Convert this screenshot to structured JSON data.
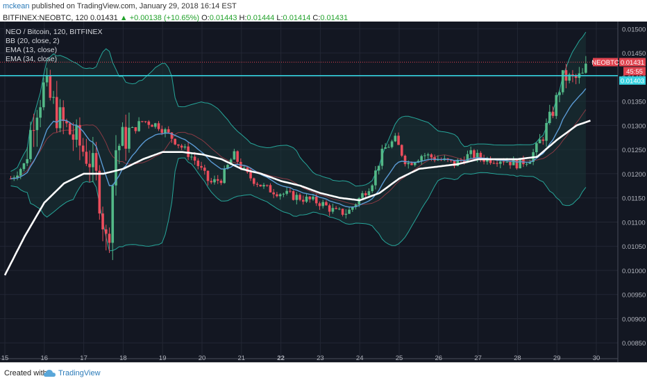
{
  "header": {
    "user": "mckean",
    "published": "published on TradingView.com, January 29, 2018 16:14 EST",
    "symbol_interval": "BITFINEX:NEOBTC, 120",
    "last": "0.01431",
    "change": "▲ +0.00138 (+10.65%)",
    "o_label": "O:",
    "o_val": "0.01443",
    "h_label": "H:",
    "h_val": "0.01444",
    "l_label": "L:",
    "l_val": "0.01414",
    "c_label": "C:",
    "c_val": "0.01431"
  },
  "legend": {
    "title": "NEO / Bitcoin, 120, BITFINEX",
    "bb": "BB (20, close, 2)",
    "ema13": "EMA (13, close)",
    "ema34": "EMA (34, close)"
  },
  "price_tags": {
    "symbol": "NEOBTC",
    "last": "0.01431",
    "countdown": "45:55",
    "hline": "0.01403"
  },
  "footer": {
    "created": "Created with",
    "brand": "TradingView"
  },
  "colors": {
    "background": "#131722",
    "grid": "#232734",
    "up": "#53b987",
    "down": "#eb4d5c",
    "bb_line": "#26a69a",
    "bb_fill": "#1a3537",
    "ema13": "#5b9bd5",
    "ema34": "#ffffff",
    "hline": "#36d2e0",
    "tag_red": "#e0434f"
  },
  "chart_data": {
    "type": "candlestick",
    "y_ticks": [
      "0.01500",
      "0.01450",
      "0.01400",
      "0.01350",
      "0.01300",
      "0.01250",
      "0.01200",
      "0.01150",
      "0.01100",
      "0.01050",
      "0.01000",
      "0.00950",
      "0.00900",
      "0.00850"
    ],
    "y_range": [
      0.0081,
      0.01515
    ],
    "x_ticks": [
      "15",
      "16",
      "17",
      "18",
      "19",
      "20",
      "21",
      "22",
      "23",
      "24",
      "25",
      "26",
      "27",
      "28",
      "29",
      "30"
    ],
    "x_day_range": [
      15.0,
      30.5
    ],
    "horizontal_line": 0.01403,
    "last_price": 0.01431,
    "candles_keypoints": [
      {
        "day": 15.15,
        "close": 0.0119
      },
      {
        "day": 15.5,
        "close": 0.0122
      },
      {
        "day": 15.75,
        "close": 0.0133
      },
      {
        "day": 16.0,
        "close": 0.0138
      },
      {
        "day": 16.4,
        "close": 0.0131
      },
      {
        "day": 16.8,
        "close": 0.0127
      },
      {
        "day": 17.15,
        "close": 0.0123
      },
      {
        "day": 17.35,
        "close": 0.0118
      },
      {
        "day": 17.6,
        "close": 0.0104
      },
      {
        "day": 17.8,
        "close": 0.0125
      },
      {
        "day": 18.1,
        "close": 0.0128
      },
      {
        "day": 18.5,
        "close": 0.0131
      },
      {
        "day": 18.9,
        "close": 0.013
      },
      {
        "day": 19.3,
        "close": 0.0127
      },
      {
        "day": 19.8,
        "close": 0.0123
      },
      {
        "day": 20.2,
        "close": 0.0118
      },
      {
        "day": 20.5,
        "close": 0.0119
      },
      {
        "day": 20.8,
        "close": 0.0124
      },
      {
        "day": 21.1,
        "close": 0.012
      },
      {
        "day": 21.6,
        "close": 0.0117
      },
      {
        "day": 22.0,
        "close": 0.0116
      },
      {
        "day": 22.5,
        "close": 0.0115
      },
      {
        "day": 23.0,
        "close": 0.0114
      },
      {
        "day": 23.4,
        "close": 0.0112
      },
      {
        "day": 23.7,
        "close": 0.0112
      },
      {
        "day": 24.0,
        "close": 0.0115
      },
      {
        "day": 24.3,
        "close": 0.0118
      },
      {
        "day": 24.6,
        "close": 0.0125
      },
      {
        "day": 24.9,
        "close": 0.0127
      },
      {
        "day": 25.2,
        "close": 0.0122
      },
      {
        "day": 25.6,
        "close": 0.0124
      },
      {
        "day": 26.0,
        "close": 0.0123
      },
      {
        "day": 26.4,
        "close": 0.0122
      },
      {
        "day": 26.8,
        "close": 0.0124
      },
      {
        "day": 27.2,
        "close": 0.0123
      },
      {
        "day": 27.6,
        "close": 0.0123
      },
      {
        "day": 28.0,
        "close": 0.0122
      },
      {
        "day": 28.3,
        "close": 0.0123
      },
      {
        "day": 28.6,
        "close": 0.0127
      },
      {
        "day": 28.9,
        "close": 0.0133
      },
      {
        "day": 29.15,
        "close": 0.014
      },
      {
        "day": 29.45,
        "close": 0.01395
      },
      {
        "day": 29.65,
        "close": 0.01403
      },
      {
        "day": 29.8,
        "close": 0.01431
      }
    ],
    "ema34_keypoints": [
      {
        "day": 15.0,
        "value": 0.0099
      },
      {
        "day": 15.5,
        "value": 0.0107
      },
      {
        "day": 16.0,
        "value": 0.0114
      },
      {
        "day": 16.5,
        "value": 0.0118
      },
      {
        "day": 17.0,
        "value": 0.012
      },
      {
        "day": 17.5,
        "value": 0.012
      },
      {
        "day": 18.0,
        "value": 0.0121
      },
      {
        "day": 18.5,
        "value": 0.0123
      },
      {
        "day": 19.0,
        "value": 0.01245
      },
      {
        "day": 19.5,
        "value": 0.01245
      },
      {
        "day": 20.0,
        "value": 0.0124
      },
      {
        "day": 20.5,
        "value": 0.0123
      },
      {
        "day": 21.0,
        "value": 0.0121
      },
      {
        "day": 21.5,
        "value": 0.012
      },
      {
        "day": 22.0,
        "value": 0.01185
      },
      {
        "day": 22.5,
        "value": 0.01175
      },
      {
        "day": 23.0,
        "value": 0.0116
      },
      {
        "day": 23.5,
        "value": 0.0115
      },
      {
        "day": 24.0,
        "value": 0.01145
      },
      {
        "day": 24.5,
        "value": 0.0116
      },
      {
        "day": 25.0,
        "value": 0.0119
      },
      {
        "day": 25.5,
        "value": 0.0121
      },
      {
        "day": 26.0,
        "value": 0.01215
      },
      {
        "day": 26.5,
        "value": 0.0122
      },
      {
        "day": 27.0,
        "value": 0.0123
      },
      {
        "day": 27.5,
        "value": 0.0123
      },
      {
        "day": 28.0,
        "value": 0.0123
      },
      {
        "day": 28.5,
        "value": 0.01235
      },
      {
        "day": 29.0,
        "value": 0.0127
      },
      {
        "day": 29.5,
        "value": 0.013
      },
      {
        "day": 29.85,
        "value": 0.0131
      }
    ]
  }
}
